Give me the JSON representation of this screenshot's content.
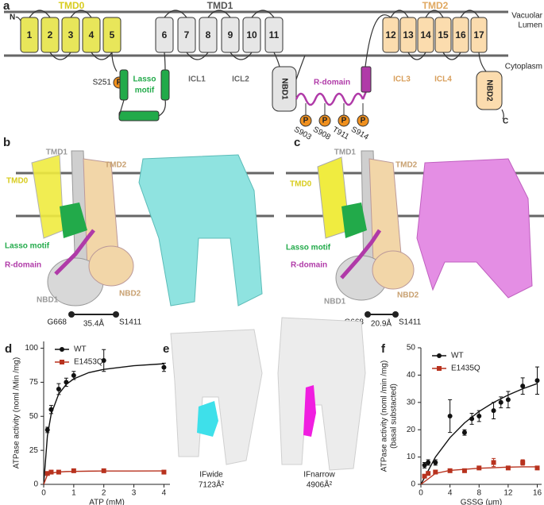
{
  "panel_a": {
    "label": "a",
    "terminals": [
      "N",
      "C"
    ],
    "domains": [
      "TMD0",
      "TMD1",
      "TMD2"
    ],
    "membrane": {
      "lumen": [
        "Vacuolar",
        "Lumen"
      ],
      "cytoplasm": "Cytoplasm"
    },
    "helices": [
      "1",
      "2",
      "3",
      "4",
      "5",
      "6",
      "7",
      "8",
      "9",
      "10",
      "11",
      "12",
      "13",
      "14",
      "15",
      "16",
      "17"
    ],
    "phospho_label": "P",
    "lasso_site": "S251",
    "lasso": [
      "Lasso",
      "motif"
    ],
    "icls": [
      "ICL1",
      "ICL2",
      "ICL3",
      "ICL4"
    ],
    "nbds": [
      "NBD1",
      "NBD2"
    ],
    "r_domain": "R-domain",
    "r_sites": [
      "S903",
      "S908",
      "T911",
      "S914"
    ]
  },
  "panel_b": {
    "label": "b",
    "labels": {
      "tmd1": "TMD1",
      "tmd2": "TMD2",
      "tmd0": "TMD0",
      "lasso": "Lasso motif",
      "r_domain": "R-domain",
      "nbd1": "NBD1",
      "nbd2": "NBD2"
    },
    "distance": {
      "from": "G668",
      "to": "S1411",
      "value": "35.4Å"
    }
  },
  "panel_c": {
    "label": "c",
    "labels": {
      "tmd1": "TMD1",
      "tmd2": "TMD2",
      "tmd0": "TMD0",
      "lasso": "Lasso motif",
      "r_domain": "R-domain",
      "nbd1": "NBD1",
      "nbd2": "NBD2"
    },
    "distance": {
      "from": "G668",
      "to": "S1411",
      "value": "20.9Å"
    }
  },
  "panel_e": {
    "label": "e",
    "states": [
      {
        "name": "IFwide",
        "area": "7123Å²"
      },
      {
        "name": "IFnarrow",
        "area": "4906Å²"
      }
    ]
  },
  "chart_data": [
    {
      "type": "scatter",
      "label": "d",
      "xlabel": "ATP (mM)",
      "ylabel": "ATPase activity (noml /Min /mg)",
      "xlim": [
        0,
        4.2
      ],
      "xticks": [
        0,
        1,
        2,
        3,
        4
      ],
      "ylim": [
        0,
        105
      ],
      "yticks": [
        0,
        25,
        50,
        75,
        100
      ],
      "legend": "upper left",
      "series": [
        {
          "name": "WT",
          "color": "#111111",
          "marker": "circle",
          "x": [
            0.125,
            0.25,
            0.5,
            0.75,
            1,
            2,
            4
          ],
          "values": [
            40,
            55,
            70,
            75,
            80,
            91,
            86
          ],
          "errors": [
            2,
            3,
            4,
            3,
            3,
            8,
            3
          ],
          "fit": {
            "x": [
              0,
              0.125,
              0.25,
              0.5,
              0.75,
              1,
              1.5,
              2,
              3,
              4
            ],
            "values": [
              0,
              35.8,
              51.7,
              66.4,
              73.4,
              77.5,
              82.1,
              84.5,
              87.2,
              88.6
            ]
          }
        },
        {
          "name": "E1453Q",
          "color": "#b8321e",
          "marker": "square",
          "x": [
            0.125,
            0.25,
            0.5,
            1,
            2,
            4
          ],
          "values": [
            8,
            9,
            9,
            10,
            10,
            9
          ],
          "errors": [
            1,
            1,
            1,
            1,
            1,
            1
          ],
          "fit": {
            "x": [
              0,
              0.125,
              0.25,
              0.5,
              0.75,
              1,
              1.5,
              2,
              3,
              4
            ],
            "values": [
              0,
              7.1,
              8.3,
              9.1,
              9.4,
              9.5,
              9.7,
              9.8,
              9.8,
              9.9
            ]
          }
        }
      ]
    },
    {
      "type": "scatter",
      "label": "f",
      "xlabel": "GSSG (μm)",
      "ylabel": [
        "ATPase activity (noml /min /mg)",
        "(basal substacted)"
      ],
      "xlim": [
        0,
        16.6
      ],
      "xticks": [
        0,
        4,
        8,
        12,
        16
      ],
      "ylim": [
        0,
        50
      ],
      "yticks": [
        0,
        10,
        20,
        30,
        40,
        50
      ],
      "legend": "upper left",
      "series": [
        {
          "name": "WT",
          "color": "#111111",
          "marker": "circle",
          "x": [
            0.5,
            1,
            2,
            4,
            6,
            7,
            8,
            10,
            11,
            12,
            14,
            16
          ],
          "values": [
            7,
            8,
            8,
            25,
            19,
            24,
            25,
            27,
            30,
            31,
            36,
            38
          ],
          "errors": [
            1,
            1,
            1,
            6,
            1,
            2,
            2,
            3,
            2,
            3,
            3,
            5
          ],
          "fit": {
            "x": [
              0,
              2,
              4,
              6,
              8,
              10,
              12,
              14,
              16
            ],
            "values": [
              0,
              10,
              17.1,
              22.5,
              26.7,
              30,
              32.7,
              35,
              36.9
            ]
          }
        },
        {
          "name": "E1435Q",
          "color": "#b8321e",
          "marker": "square",
          "x": [
            0.5,
            1,
            2,
            4,
            6,
            8,
            10,
            12,
            14,
            16
          ],
          "values": [
            3,
            4,
            4.5,
            5,
            5,
            6,
            8,
            6,
            8,
            6
          ],
          "errors": [
            0.5,
            0.5,
            0.5,
            0.5,
            0.5,
            0.5,
            1.5,
            0.5,
            1,
            0.5
          ],
          "fit": {
            "x": [
              0,
              2,
              4,
              6,
              8,
              10,
              12,
              14,
              16
            ],
            "values": [
              0,
              4,
              5.1,
              5.5,
              5.9,
              6.1,
              6.3,
              6.4,
              6.4
            ]
          }
        }
      ]
    }
  ]
}
